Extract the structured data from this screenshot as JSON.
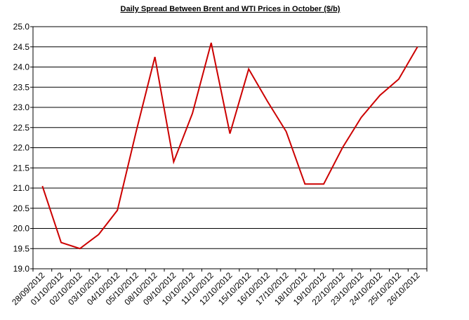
{
  "chart_data": {
    "type": "line",
    "title": "Daily Spread Between Brent and WTI Prices in October ($/b)",
    "categories": [
      "28/09/2012",
      "01/10/2012",
      "02/10/2012",
      "03/10/2012",
      "04/10/2012",
      "05/10/2012",
      "08/10/2012",
      "09/10/2012",
      "10/10/2012",
      "11/10/2012",
      "12/10/2012",
      "15/10/2012",
      "16/10/2012",
      "17/10/2012",
      "18/10/2012",
      "19/10/2012",
      "22/10/2012",
      "23/10/2012",
      "24/10/2012",
      "25/10/2012",
      "26/10/2012"
    ],
    "values": [
      21.05,
      19.65,
      19.5,
      19.85,
      20.45,
      22.4,
      24.25,
      21.65,
      22.85,
      24.6,
      22.35,
      23.95,
      23.15,
      22.4,
      21.1,
      21.1,
      22.0,
      22.75,
      23.3,
      23.7,
      24.5
    ],
    "color": "#cc0000",
    "ylim": [
      19,
      25
    ],
    "yticks": [
      {
        "value": 19,
        "label": "19.0"
      },
      19.5,
      {
        "value": 20,
        "label": "20.0"
      },
      20.5,
      {
        "value": 21,
        "label": "21.0"
      },
      21.5,
      {
        "value": 22,
        "label": "22.0"
      },
      22.5,
      {
        "value": 23,
        "label": "23.0"
      },
      23.5,
      {
        "value": 24,
        "label": "24.0"
      },
      24.5,
      {
        "value": 25,
        "label": "25.0"
      }
    ],
    "grid": true
  }
}
